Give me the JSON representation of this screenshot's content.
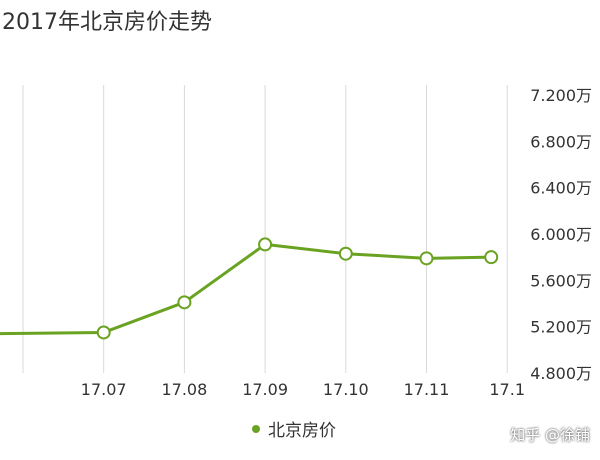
{
  "title": "2017年北京房价走势",
  "watermark": "知乎 @徐铺",
  "colors": {
    "line": "#6aa321",
    "grid": "#d9d9d9",
    "text": "#333333"
  },
  "chart_data": {
    "type": "line",
    "x": [
      "17.06",
      "17.07",
      "17.08",
      "17.09",
      "17.10",
      "17.11",
      "17.12"
    ],
    "x_tick_labels": [
      "",
      "17.07",
      "17.08",
      "17.09",
      "17.10",
      "17.11",
      "17.1"
    ],
    "series": [
      {
        "name": "北京房价",
        "values": [
          5.14,
          5.15,
          5.41,
          5.91,
          5.83,
          5.79,
          5.8
        ]
      }
    ],
    "y_tick_labels": [
      "4.800万",
      "5.200万",
      "5.600万",
      "6.000万",
      "6.400万",
      "6.800万",
      "7.200万"
    ],
    "ylim": [
      4.8,
      7.2
    ],
    "y_axis_position": "right",
    "grid": "vertical",
    "legend": "bottom-center"
  }
}
